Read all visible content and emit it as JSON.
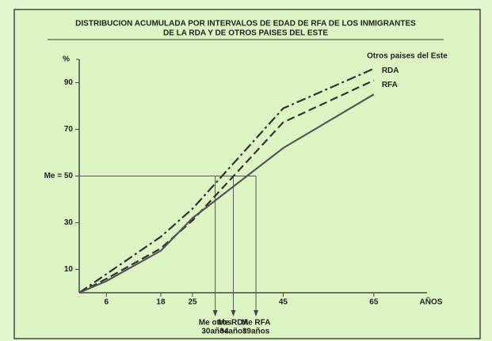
{
  "chart_data": {
    "type": "line",
    "title": [
      "DISTRIBUCION ACUMULADA POR INTERVALOS DE EDAD DE RFA DE LOS INMIGRANTES",
      "DE LA RDA Y DE OTROS PAISES DEL ESTE"
    ],
    "x": [
      0,
      6,
      18,
      25,
      45,
      65
    ],
    "series": [
      {
        "name": "Otros paises del Este",
        "color": "#333333",
        "style": "dash-dot",
        "values": [
          0,
          8,
          24,
          36,
          79,
          96
        ]
      },
      {
        "name": "RDA",
        "color": "#333333",
        "style": "dashed",
        "values": [
          0,
          6,
          19,
          31,
          73,
          91
        ]
      },
      {
        "name": "RFA",
        "color": "#555555",
        "style": "solid",
        "values": [
          0,
          5,
          18,
          32,
          62,
          85
        ]
      }
    ],
    "xlim": [
      0,
      68
    ],
    "ylim": [
      0,
      100
    ],
    "xticks": [
      6,
      18,
      25,
      45,
      65
    ],
    "yticks": [
      10,
      30,
      {
        "value": 50,
        "label": "Me = 50"
      },
      70,
      90
    ],
    "xlabel": "AÑOS",
    "ylabel": "%",
    "annotations": [
      {
        "x": 30,
        "lines": [
          "Me otros",
          "30años"
        ]
      },
      {
        "x": 34,
        "lines": [
          "Me RDA",
          "34años"
        ]
      },
      {
        "x": 39,
        "lines": [
          "Me RFA",
          "39años"
        ]
      }
    ]
  }
}
